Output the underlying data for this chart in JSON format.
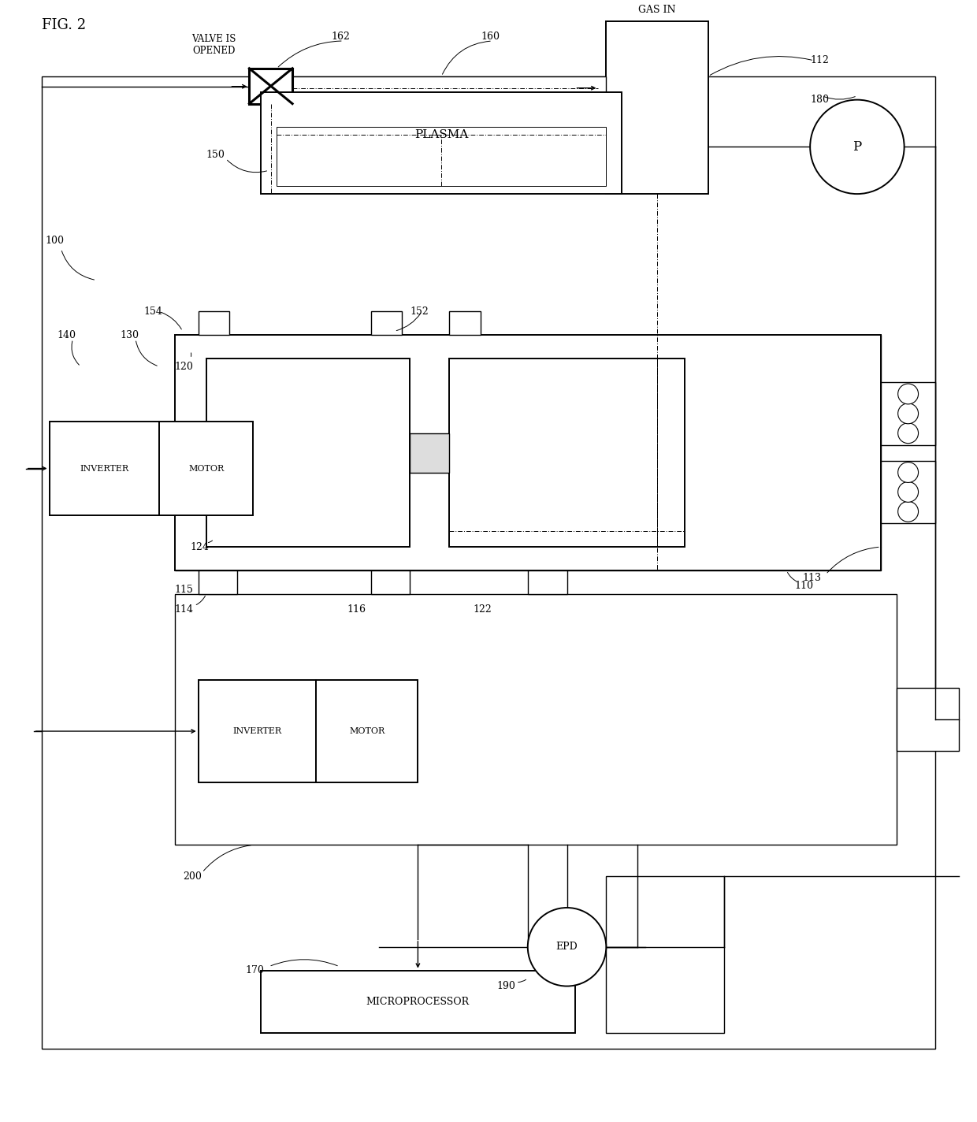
{
  "fig_width": 12.4,
  "fig_height": 14.24,
  "labels": {
    "fig_title": "FIG. 2",
    "valve": "VALVE IS\nOPENED",
    "gas_in": "GAS IN",
    "plasma": "PLASMA",
    "inv1": "INVERTER",
    "mot1": "MOTOR",
    "inv2": "INVERTER",
    "mot2": "MOTOR",
    "micro": "MICROPROCESSOR",
    "p": "P",
    "epd": "EPD",
    "r100": "100",
    "r110": "110",
    "r112": "112",
    "r113": "113",
    "r114": "114",
    "r115": "115",
    "r116": "116",
    "r120": "120",
    "r122": "122",
    "r124": "124",
    "r130": "130",
    "r140": "140",
    "r150": "150",
    "r152": "152",
    "r154": "154",
    "r160": "160",
    "r162": "162",
    "r170": "170",
    "r180": "180",
    "r190": "190",
    "r200": "200"
  }
}
